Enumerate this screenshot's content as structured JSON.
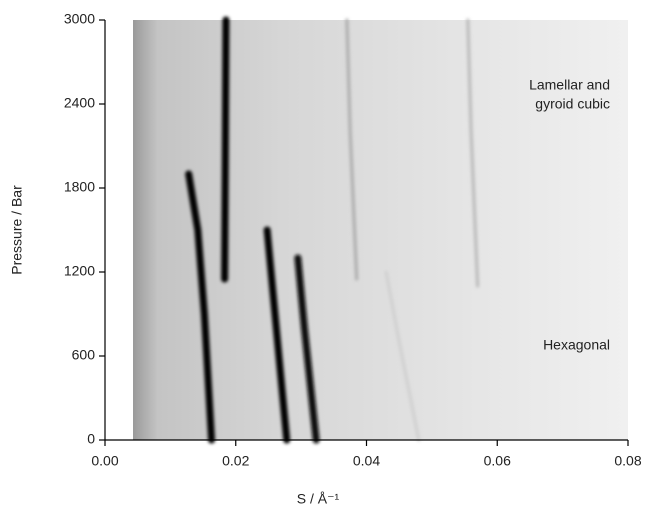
{
  "chart_data": {
    "type": "heatmap",
    "x_label": "S / Å⁻¹",
    "y_label": "Pressure / Bar",
    "xlim": [
      0,
      0.08
    ],
    "ylim": [
      0,
      3000
    ],
    "xticks": [
      {
        "value": 0,
        "label": "0.00"
      },
      0.02,
      0.04,
      0.06,
      0.08
    ],
    "yticks": [
      0,
      600,
      1200,
      1800,
      2400,
      3000
    ],
    "annotations": [
      [
        "Lamellar and",
        "gyroid cubic"
      ],
      [
        "Hexagonal"
      ]
    ],
    "series": [
      {
        "color": "#000000",
        "x": [
          0.0163,
          0.0152,
          0.0142,
          0.0128
        ],
        "y": [
          0,
          900,
          1500,
          1900
        ]
      },
      {
        "color": "#000000",
        "x": [
          0.0183,
          0.0184,
          0.0185
        ],
        "y": [
          1150,
          2000,
          3000
        ]
      },
      {
        "color": "#000000",
        "x": [
          0.0278,
          0.026,
          0.0248
        ],
        "y": [
          0,
          900,
          1500
        ]
      },
      {
        "color": "#111111",
        "x": [
          0.0323,
          0.0305,
          0.0295
        ],
        "y": [
          0,
          800,
          1300
        ]
      },
      {
        "color": "#aaaaaa",
        "x": [
          0.0385,
          0.0375,
          0.037
        ],
        "y": [
          1150,
          2200,
          3000
        ]
      },
      {
        "color": "#b8b8b8",
        "x": [
          0.057,
          0.056,
          0.0555
        ],
        "y": [
          1100,
          2200,
          3000
        ]
      },
      {
        "color": "#cfcfcf",
        "x": [
          0.048,
          0.045,
          0.043
        ],
        "y": [
          0,
          700,
          1200
        ]
      }
    ]
  }
}
